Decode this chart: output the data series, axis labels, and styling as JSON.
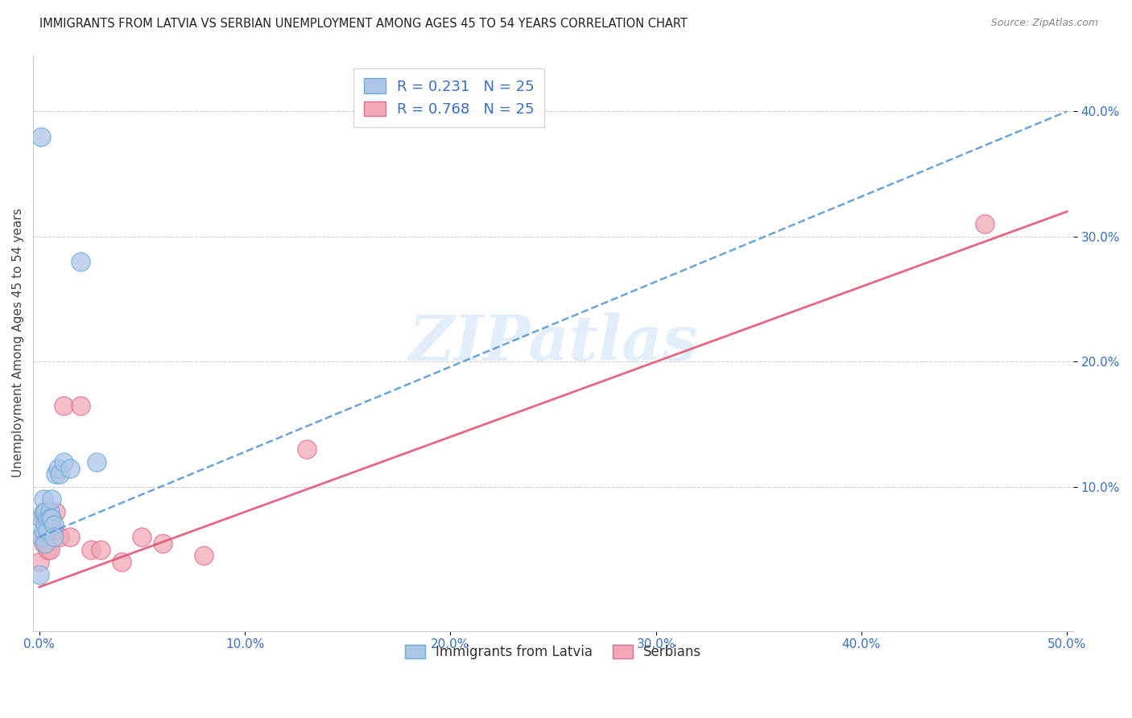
{
  "title": "IMMIGRANTS FROM LATVIA VS SERBIAN UNEMPLOYMENT AMONG AGES 45 TO 54 YEARS CORRELATION CHART",
  "source": "Source: ZipAtlas.com",
  "ylabel": "Unemployment Among Ages 45 to 54 years",
  "xlim": [
    -0.003,
    0.503
  ],
  "ylim": [
    -0.015,
    0.445
  ],
  "xticks": [
    0.0,
    0.1,
    0.2,
    0.3,
    0.4,
    0.5
  ],
  "yticks": [
    0.1,
    0.2,
    0.3,
    0.4
  ],
  "ytick_labels": [
    "10.0%",
    "20.0%",
    "30.0%",
    "40.0%"
  ],
  "xtick_labels": [
    "0.0%",
    "10.0%",
    "20.0%",
    "30.0%",
    "40.0%",
    "50.0%"
  ],
  "R_latvia": 0.231,
  "R_serbian": 0.768,
  "N": 25,
  "blue_scatter_color": "#aec6e8",
  "blue_edge_color": "#6baed6",
  "pink_scatter_color": "#f4a8b8",
  "pink_edge_color": "#e07090",
  "blue_line_color": "#5b9bd5",
  "pink_line_color": "#e05878",
  "watermark_color": "#d0e4f7",
  "latvia_x": [
    0.0,
    0.001,
    0.001,
    0.002,
    0.002,
    0.002,
    0.003,
    0.003,
    0.003,
    0.004,
    0.004,
    0.005,
    0.005,
    0.006,
    0.006,
    0.007,
    0.007,
    0.008,
    0.009,
    0.01,
    0.012,
    0.015,
    0.02,
    0.028,
    0.001
  ],
  "latvia_y": [
    0.03,
    0.06,
    0.075,
    0.065,
    0.08,
    0.09,
    0.07,
    0.08,
    0.055,
    0.075,
    0.065,
    0.08,
    0.075,
    0.09,
    0.075,
    0.07,
    0.06,
    0.11,
    0.115,
    0.11,
    0.12,
    0.115,
    0.28,
    0.12,
    0.38
  ],
  "serbian_x": [
    0.0,
    0.001,
    0.002,
    0.002,
    0.003,
    0.003,
    0.004,
    0.004,
    0.005,
    0.005,
    0.006,
    0.007,
    0.008,
    0.01,
    0.012,
    0.015,
    0.02,
    0.025,
    0.03,
    0.04,
    0.05,
    0.06,
    0.08,
    0.13,
    0.46
  ],
  "serbian_y": [
    0.04,
    0.06,
    0.055,
    0.075,
    0.075,
    0.08,
    0.06,
    0.05,
    0.065,
    0.05,
    0.075,
    0.065,
    0.08,
    0.06,
    0.165,
    0.06,
    0.165,
    0.05,
    0.05,
    0.04,
    0.06,
    0.055,
    0.045,
    0.13,
    0.31
  ],
  "latvia_line_x": [
    0.0,
    0.5
  ],
  "latvia_line_y": [
    0.06,
    0.4
  ],
  "serbian_line_x": [
    0.0,
    0.5
  ],
  "serbian_line_y": [
    0.02,
    0.32
  ]
}
